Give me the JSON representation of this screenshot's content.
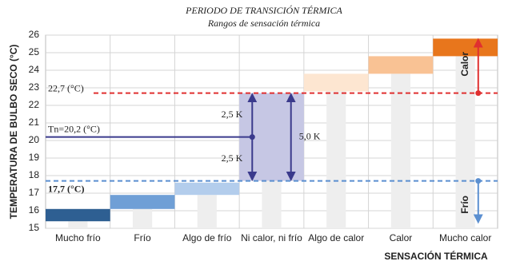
{
  "chart_data": {
    "type": "floating-bar",
    "title": "PERIODO DE TRANSICIÓN TÉRMICA",
    "subtitle": "Rangos de sensación térmica",
    "y_label": "TEMPERATURA DE BULBO SECO  (°C)",
    "x_label": "SENSACIÓN TÉRMICA",
    "categories": [
      "Mucho frío",
      "Frío",
      "Algo de frío",
      "Ni calor, ni frío",
      "Algo de calor",
      "Calor",
      "Mucho calor"
    ],
    "ranges": [
      [
        15.4,
        16.1
      ],
      [
        16.1,
        16.9
      ],
      [
        16.9,
        17.6
      ],
      [
        17.7,
        22.7
      ],
      [
        22.8,
        23.8
      ],
      [
        23.8,
        24.8
      ],
      [
        24.8,
        25.8
      ]
    ],
    "colors": [
      "#2e5f92",
      "#6f9fd6",
      "#b3cdec",
      "#c6c7e4",
      "#fde6d1",
      "#f9c294",
      "#e8761c"
    ],
    "ylim": [
      15,
      26
    ],
    "yticks": [
      15,
      16,
      17,
      18,
      19,
      20,
      21,
      22,
      23,
      24,
      25,
      26
    ],
    "grid": true,
    "reference_lines": [
      {
        "value": 22.7,
        "label": "22,7 (°C)",
        "color": "#e03030"
      },
      {
        "value": 20.2,
        "label": "Tn=20,2 (°C)",
        "color": "#3a3a8c"
      },
      {
        "value": 17.7,
        "label": "17,7 (°C)",
        "color": "#5b8fd0"
      }
    ],
    "half_labels": [
      "2,5  K",
      "2,5  K"
    ],
    "width_label": "5,0  K",
    "warm_label": "Calor",
    "cold_label": "Frío"
  }
}
